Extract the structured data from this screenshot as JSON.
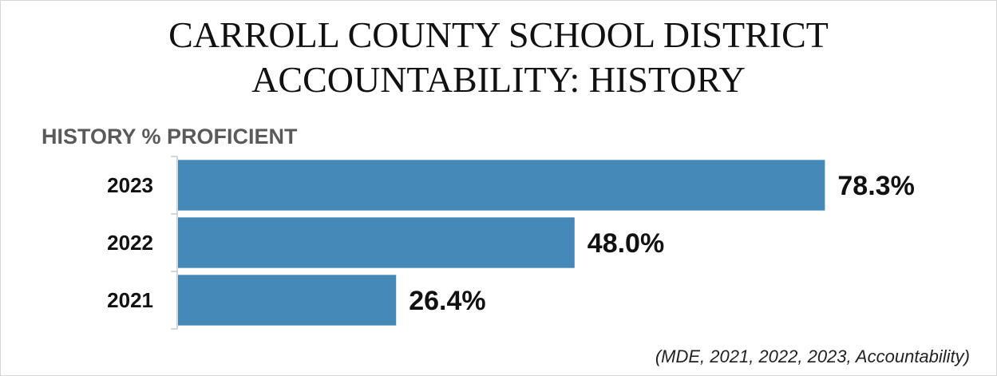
{
  "page": {
    "title_line1": "CARROLL COUNTY SCHOOL DISTRICT",
    "title_line2": "ACCOUNTABILITY: HISTORY",
    "source": "(MDE, 2021, 2022, 2023, Accountability)"
  },
  "colors": {
    "bar": "#4489b8",
    "axis": "#c8c8c8",
    "chart_title": "#5a5a5a"
  },
  "chart_data": {
    "type": "bar",
    "orientation": "horizontal",
    "title": "HISTORY % PROFICIENT",
    "xlabel": "",
    "ylabel": "",
    "categories": [
      "2023",
      "2022",
      "2021"
    ],
    "values": [
      78.3,
      48.0,
      26.4
    ],
    "data_labels": [
      "78.3%",
      "48.0%",
      "26.4%"
    ],
    "unit": "%",
    "xlim": [
      0,
      100
    ],
    "grid": false,
    "legend": "none"
  }
}
